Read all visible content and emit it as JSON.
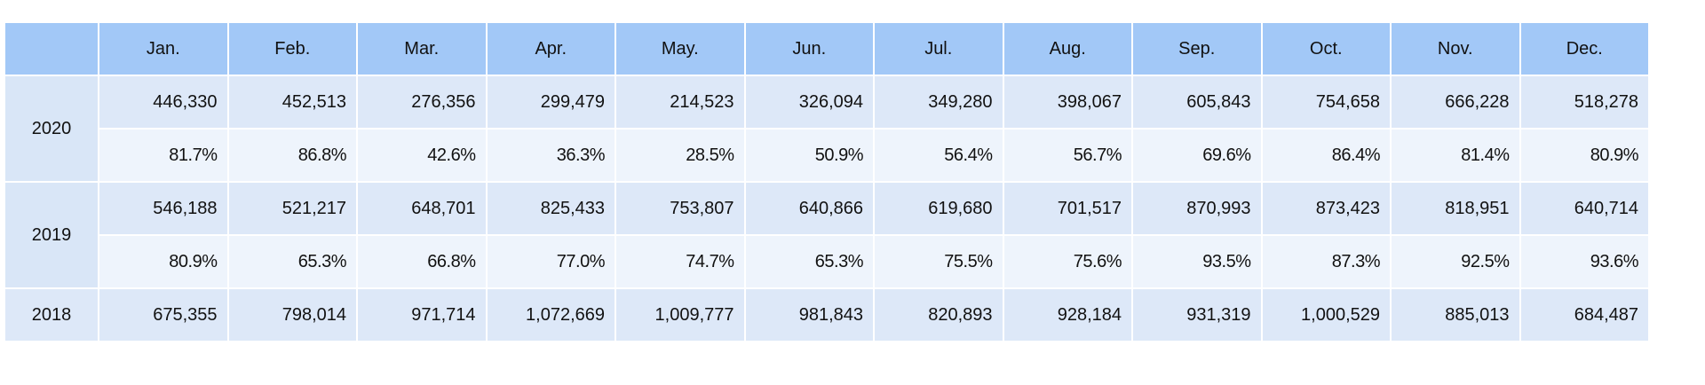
{
  "header": {
    "corner": "",
    "months": [
      "Jan.",
      "Feb.",
      "Mar.",
      "Apr.",
      "May.",
      "Jun.",
      "Jul.",
      "Aug.",
      "Sep.",
      "Oct.",
      "Nov.",
      "Dec."
    ]
  },
  "rows": {
    "y2020": {
      "year": "2020",
      "values": [
        "446,330",
        "452,513",
        "276,356",
        "299,479",
        "214,523",
        "326,094",
        "349,280",
        "398,067",
        "605,843",
        "754,658",
        "666,228",
        "518,278"
      ],
      "percents": [
        "81.7%",
        "86.8%",
        "42.6%",
        "36.3%",
        "28.5%",
        "50.9%",
        "56.4%",
        "56.7%",
        "69.6%",
        "86.4%",
        "81.4%",
        "80.9%"
      ]
    },
    "y2019": {
      "year": "2019",
      "values": [
        "546,188",
        "521,217",
        "648,701",
        "825,433",
        "753,807",
        "640,866",
        "619,680",
        "701,517",
        "870,993",
        "873,423",
        "818,951",
        "640,714"
      ],
      "percents": [
        "80.9%",
        "65.3%",
        "66.8%",
        "77.0%",
        "74.7%",
        "65.3%",
        "75.5%",
        "75.6%",
        "93.5%",
        "87.3%",
        "92.5%",
        "93.6%"
      ]
    },
    "y2018": {
      "year": "2018",
      "values": [
        "675,355",
        "798,014",
        "971,714",
        "1,072,669",
        "1,009,777",
        "981,843",
        "820,893",
        "928,184",
        "931,319",
        "1,000,529",
        "885,013",
        "684,487"
      ]
    }
  },
  "colors": {
    "header_bg": "#a2c8f7",
    "value_row_bg": "#dde8f8",
    "percent_row_bg": "#eef4fc",
    "year_cell_bg": "#d9e6f7",
    "grid_line": "#ffffff"
  }
}
